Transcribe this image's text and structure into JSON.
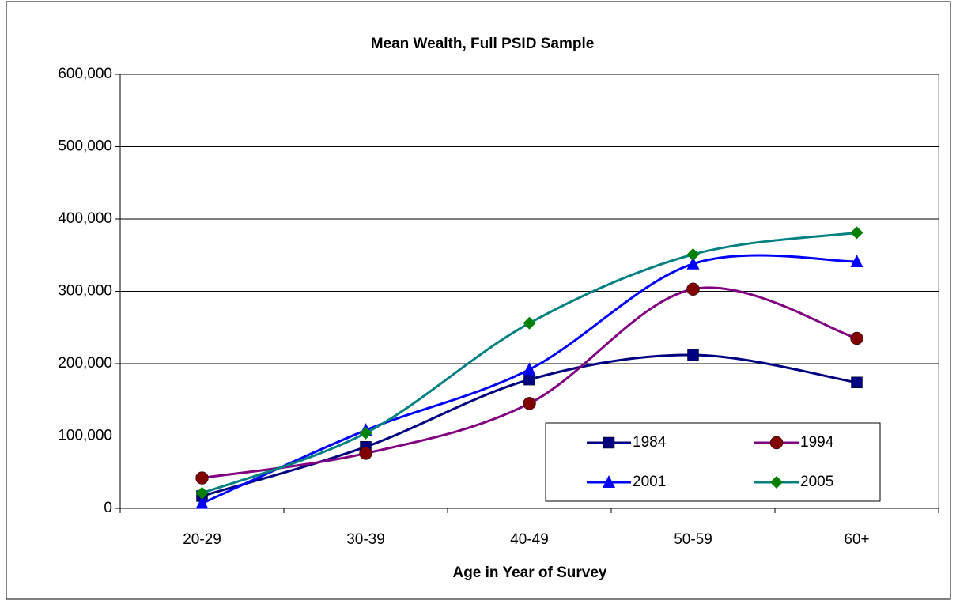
{
  "chart_data": {
    "type": "line",
    "title": "Mean Wealth, Full PSID Sample",
    "x_label": "Age in Year of Survey",
    "categories": [
      "20-29",
      "30-39",
      "40-49",
      "50-59",
      "60+"
    ],
    "series": [
      {
        "name": "1984",
        "color": "#000080",
        "marker_color": "#000080",
        "marker": "square",
        "values": [
          17000,
          85000,
          178000,
          212000,
          174000
        ]
      },
      {
        "name": "1994",
        "color": "#800080",
        "marker_color": "#800000",
        "marker": "circle",
        "values": [
          42000,
          76000,
          145000,
          303000,
          235000
        ]
      },
      {
        "name": "2001",
        "color": "#0000ff",
        "marker_color": "#0000ff",
        "marker": "triangle",
        "values": [
          7000,
          108000,
          192000,
          338000,
          341000
        ]
      },
      {
        "name": "2005",
        "color": "#008080",
        "marker_color": "#008000",
        "marker": "diamond",
        "values": [
          21000,
          104000,
          256000,
          351000,
          381000
        ]
      }
    ],
    "ylim": [
      0,
      600000
    ],
    "yticks": [
      0,
      {
        "value": 100000,
        "label": "100,000"
      },
      {
        "value": 200000,
        "label": "200,000"
      },
      {
        "value": 300000,
        "label": "300,000"
      },
      {
        "value": 400000,
        "label": "400,000"
      },
      {
        "value": 500000,
        "label": "500,000"
      },
      {
        "value": 600000,
        "label": "600,000"
      }
    ],
    "grid": true,
    "smooth": true,
    "legend_position": "lower right"
  }
}
